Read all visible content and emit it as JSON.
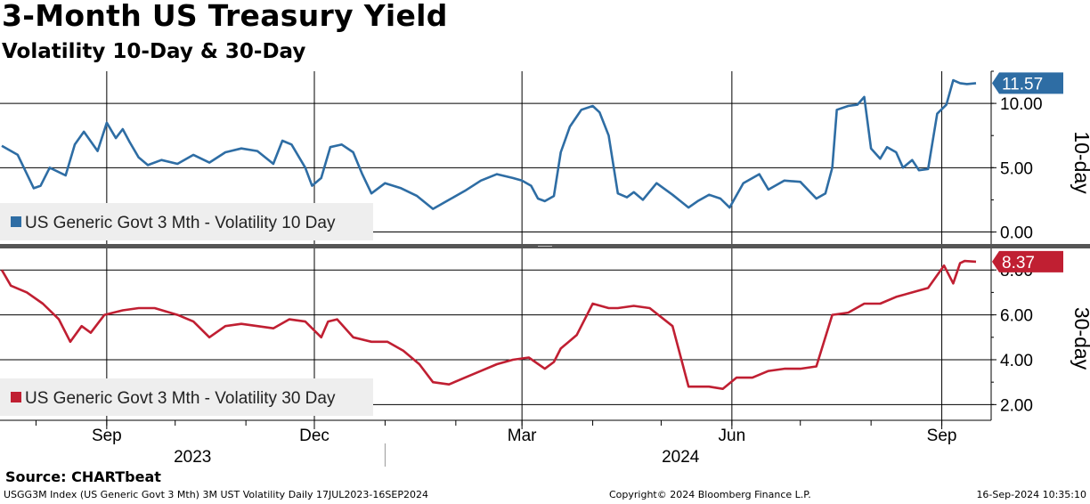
{
  "header": {
    "title": "3-Month US Treasury Yield",
    "subtitle": "Volatility 10-Day & 30-Day"
  },
  "footer": {
    "source": "Source: CHARTbeat",
    "description": "USGG3M Index (US Generic Govt 3 Mth) 3M UST Volatility  Daily 17JUL2023-16SEP2024",
    "copyright": "Copyright© 2024 Bloomberg Finance L.P.",
    "timestamp": "16-Sep-2024 10:35:10"
  },
  "colors": {
    "series_10d": "#2e6da4",
    "series_30d": "#c01f32",
    "grid": "#000000",
    "legend_bg": "#eeeeee",
    "divider": "#555555"
  },
  "chart_data": [
    {
      "type": "line",
      "panel": "top",
      "axis_title": "10-day",
      "x_range": [
        "2023-07-17",
        "2024-09-16"
      ],
      "ylim": [
        -1,
        12.5
      ],
      "y_ticks": [
        0,
        5,
        10
      ],
      "y_tick_labels": [
        "0.00",
        "5.00",
        "10.00"
      ],
      "grid": true,
      "legend_placement": "bottom-left",
      "last_value_label": "11.57",
      "series": [
        {
          "name": "US Generic Govt 3 Mth - Volatility 10 Day",
          "color": "#2e6da4",
          "x": [
            "2023-07-17",
            "2023-07-24",
            "2023-07-31",
            "2023-08-03",
            "2023-08-07",
            "2023-08-14",
            "2023-08-18",
            "2023-08-22",
            "2023-08-28",
            "2023-09-01",
            "2023-09-05",
            "2023-09-08",
            "2023-09-11",
            "2023-09-15",
            "2023-09-19",
            "2023-09-25",
            "2023-10-02",
            "2023-10-09",
            "2023-10-16",
            "2023-10-23",
            "2023-10-30",
            "2023-11-06",
            "2023-11-13",
            "2023-11-17",
            "2023-11-21",
            "2023-11-27",
            "2023-11-30",
            "2023-12-04",
            "2023-12-08",
            "2023-12-13",
            "2023-12-18",
            "2023-12-22",
            "2023-12-26",
            "2024-01-01",
            "2024-01-08",
            "2024-01-15",
            "2024-01-22",
            "2024-01-29",
            "2024-02-05",
            "2024-02-12",
            "2024-02-19",
            "2024-02-26",
            "2024-03-01",
            "2024-03-05",
            "2024-03-08",
            "2024-03-11",
            "2024-03-15",
            "2024-03-18",
            "2024-03-22",
            "2024-03-27",
            "2024-04-01",
            "2024-04-04",
            "2024-04-08",
            "2024-04-12",
            "2024-04-16",
            "2024-04-19",
            "2024-04-23",
            "2024-04-29",
            "2024-05-06",
            "2024-05-13",
            "2024-05-17",
            "2024-05-22",
            "2024-05-27",
            "2024-05-31",
            "2024-06-06",
            "2024-06-13",
            "2024-06-17",
            "2024-06-24",
            "2024-07-01",
            "2024-07-08",
            "2024-07-12",
            "2024-07-15",
            "2024-07-17",
            "2024-07-22",
            "2024-07-26",
            "2024-07-29",
            "2024-08-01",
            "2024-08-05",
            "2024-08-08",
            "2024-08-12",
            "2024-08-15",
            "2024-08-19",
            "2024-08-22",
            "2024-08-26",
            "2024-08-30",
            "2024-09-03",
            "2024-09-06",
            "2024-09-09",
            "2024-09-12",
            "2024-09-16"
          ],
          "values": [
            6.7,
            6.0,
            3.4,
            3.6,
            5.0,
            4.4,
            6.8,
            7.8,
            6.3,
            8.5,
            7.3,
            8.0,
            7.0,
            5.8,
            5.2,
            5.6,
            5.3,
            6.0,
            5.4,
            6.2,
            6.5,
            6.3,
            5.3,
            7.1,
            6.8,
            5.0,
            3.6,
            4.2,
            6.6,
            6.8,
            6.2,
            4.5,
            3.0,
            3.8,
            3.4,
            2.8,
            1.8,
            2.5,
            3.2,
            4.0,
            4.5,
            4.2,
            4.0,
            3.6,
            2.6,
            2.4,
            2.8,
            6.2,
            8.2,
            9.5,
            9.8,
            9.3,
            7.5,
            3.0,
            2.7,
            3.1,
            2.5,
            3.8,
            2.9,
            1.9,
            2.4,
            2.9,
            2.6,
            1.9,
            3.8,
            4.5,
            3.3,
            4.0,
            3.9,
            2.6,
            3.0,
            5.0,
            9.5,
            9.8,
            9.9,
            10.5,
            6.5,
            5.7,
            6.6,
            6.2,
            5.0,
            5.6,
            4.8,
            4.9,
            9.2,
            9.9,
            11.8,
            11.57,
            11.5,
            11.57
          ]
        }
      ]
    },
    {
      "type": "line",
      "panel": "bottom",
      "axis_title": "30-day",
      "x_range": [
        "2023-07-17",
        "2024-09-16"
      ],
      "ylim": [
        1.3,
        9.0
      ],
      "y_ticks": [
        2,
        4,
        6,
        8
      ],
      "y_tick_labels": [
        "2.00",
        "4.00",
        "6.00",
        "8.00"
      ],
      "grid": true,
      "legend_placement": "bottom-left",
      "last_value_label": "8.37",
      "series": [
        {
          "name": "US Generic Govt 3 Mth - Volatility 30 Day",
          "color": "#c01f32",
          "x": [
            "2023-07-17",
            "2023-07-21",
            "2023-07-28",
            "2023-08-04",
            "2023-08-11",
            "2023-08-16",
            "2023-08-21",
            "2023-08-25",
            "2023-08-31",
            "2023-09-08",
            "2023-09-15",
            "2023-09-22",
            "2023-10-02",
            "2023-10-09",
            "2023-10-16",
            "2023-10-23",
            "2023-10-30",
            "2023-11-06",
            "2023-11-13",
            "2023-11-20",
            "2023-11-27",
            "2023-12-04",
            "2023-12-07",
            "2023-12-11",
            "2023-12-18",
            "2023-12-26",
            "2024-01-02",
            "2024-01-09",
            "2024-01-16",
            "2024-01-22",
            "2024-01-29",
            "2024-02-05",
            "2024-02-12",
            "2024-02-19",
            "2024-02-26",
            "2024-03-04",
            "2024-03-11",
            "2024-03-15",
            "2024-03-18",
            "2024-03-25",
            "2024-04-01",
            "2024-04-08",
            "2024-04-12",
            "2024-04-19",
            "2024-04-26",
            "2024-05-06",
            "2024-05-13",
            "2024-05-17",
            "2024-05-22",
            "2024-05-28",
            "2024-06-03",
            "2024-06-10",
            "2024-06-17",
            "2024-06-24",
            "2024-07-01",
            "2024-07-08",
            "2024-07-15",
            "2024-07-22",
            "2024-07-29",
            "2024-08-05",
            "2024-08-12",
            "2024-08-19",
            "2024-08-26",
            "2024-09-02",
            "2024-09-06",
            "2024-09-09",
            "2024-09-11",
            "2024-09-16"
          ],
          "values": [
            8.0,
            7.3,
            7.0,
            6.5,
            5.8,
            4.8,
            5.5,
            5.2,
            6.0,
            6.2,
            6.3,
            6.3,
            6.0,
            5.7,
            5.0,
            5.5,
            5.6,
            5.5,
            5.4,
            5.8,
            5.7,
            5.0,
            5.7,
            5.8,
            5.0,
            4.8,
            4.8,
            4.4,
            3.8,
            3.0,
            2.9,
            3.2,
            3.5,
            3.8,
            4.0,
            4.1,
            3.6,
            3.9,
            4.5,
            5.1,
            6.5,
            6.3,
            6.3,
            6.4,
            6.3,
            5.5,
            2.8,
            2.8,
            2.8,
            2.7,
            3.2,
            3.2,
            3.5,
            3.6,
            3.6,
            3.7,
            6.0,
            6.1,
            6.5,
            6.5,
            6.8,
            7.0,
            7.2,
            8.2,
            7.4,
            8.3,
            8.4,
            8.37
          ]
        }
      ]
    }
  ],
  "x_axis": {
    "months": [
      {
        "date": "2023-09-01",
        "label": "Sep"
      },
      {
        "date": "2023-12-01",
        "label": "Dec"
      },
      {
        "date": "2024-03-01",
        "label": "Mar"
      },
      {
        "date": "2024-06-01",
        "label": "Jun"
      },
      {
        "date": "2024-09-01",
        "label": "Sep"
      }
    ],
    "years": [
      {
        "label": "2023"
      },
      {
        "label": "2024"
      }
    ]
  }
}
